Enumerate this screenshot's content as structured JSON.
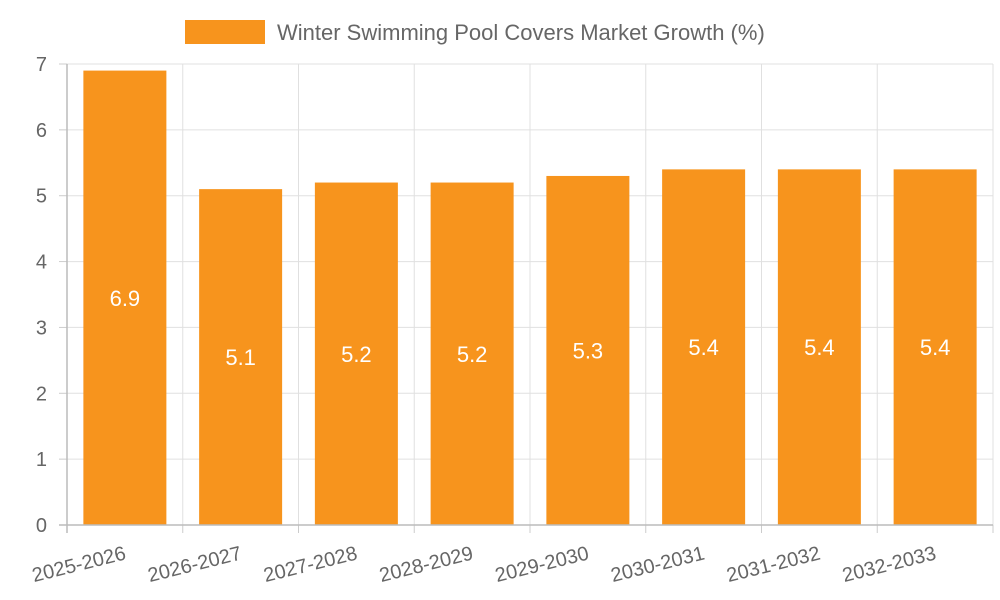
{
  "chart_data": {
    "type": "bar",
    "title": "",
    "legend": [
      {
        "label": "Winter Swimming Pool Covers Market Growth (%)",
        "color": "#f7941d"
      }
    ],
    "legend_position": "top-center",
    "categories": [
      "2025-2026",
      "2026-2027",
      "2027-2028",
      "2028-2029",
      "2029-2030",
      "2030-2031",
      "2031-2032",
      "2032-2033"
    ],
    "series": [
      {
        "name": "Winter Swimming Pool Covers Market Growth (%)",
        "values": [
          6.9,
          5.1,
          5.2,
          5.2,
          5.3,
          5.4,
          5.4,
          5.4
        ],
        "labels": [
          "6.9",
          "5.1",
          "5.2",
          "5.2",
          "5.3",
          "5.4",
          "5.4",
          "5.4"
        ],
        "color": "#f7941d"
      }
    ],
    "xlabel": "",
    "ylabel": "",
    "ylim": [
      0,
      7
    ],
    "yticks": [
      "0",
      "1",
      "2",
      "3",
      "4",
      "5",
      "6",
      "7"
    ],
    "grid": true
  }
}
